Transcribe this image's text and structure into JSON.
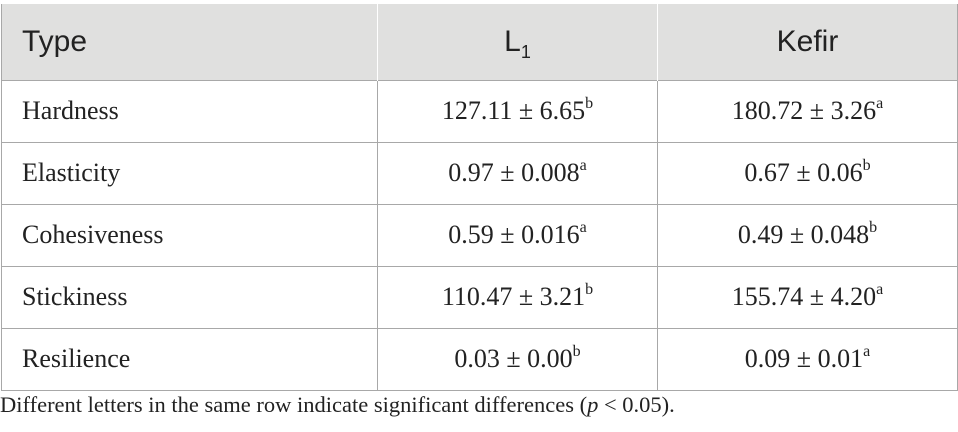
{
  "table": {
    "headers": {
      "type": "Type",
      "l1_main": "L",
      "l1_sub": "1",
      "kefir": "Kefir"
    },
    "rows": [
      {
        "label": "Hardness",
        "l1": "127.11 ± 6.65",
        "l1_sup": "b",
        "kefir": "180.72 ± 3.26",
        "kefir_sup": "a"
      },
      {
        "label": "Elasticity",
        "l1": "0.97 ± 0.008",
        "l1_sup": "a",
        "kefir": "0.67 ± 0.06",
        "kefir_sup": "b"
      },
      {
        "label": "Cohesiveness",
        "l1": "0.59 ± 0.016",
        "l1_sup": "a",
        "kefir": "0.49 ± 0.048",
        "kefir_sup": "b"
      },
      {
        "label": "Stickiness",
        "l1": "110.47 ± 3.21",
        "l1_sup": "b",
        "kefir": "155.74 ± 4.20",
        "kefir_sup": "a"
      },
      {
        "label": "Resilience",
        "l1": "0.03 ± 0.00",
        "l1_sup": "b",
        "kefir": "0.09 ± 0.01",
        "kefir_sup": "a"
      }
    ]
  },
  "footnote": {
    "before": "Different letters in the same row indicate significant differences (",
    "p_symbol": "p",
    "after": " < 0.05)."
  },
  "colors": {
    "header_bg": "#e0e0df",
    "border": "#a8a8a8",
    "text": "#222222"
  }
}
